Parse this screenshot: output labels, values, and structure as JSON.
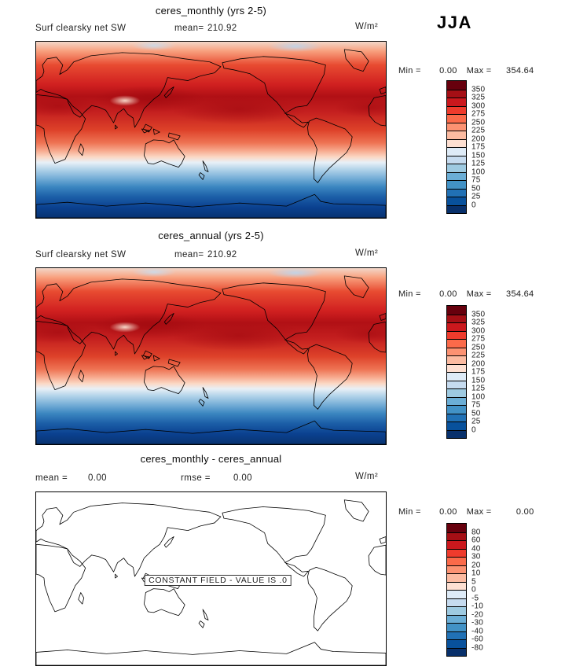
{
  "season_label": "JJA",
  "panels": [
    {
      "title": "ceres_monthly (yrs 2-5)",
      "var_label": "Surf clearsky net SW",
      "mean_label": "mean=",
      "mean_value": "210.92",
      "units": "W/m²",
      "min_label": "Min =",
      "min_value": "0.00",
      "max_label": "Max =",
      "max_value": "354.64",
      "colorbar": {
        "ticks": [
          "350",
          "325",
          "300",
          "275",
          "250",
          "225",
          "200",
          "175",
          "150",
          "125",
          "100",
          "75",
          "50",
          "25",
          "0"
        ],
        "colors": [
          "#67000d",
          "#a50f15",
          "#cb181d",
          "#ef3b2c",
          "#fb6a4a",
          "#fc9272",
          "#fcbba1",
          "#fee0d2",
          "#deebf7",
          "#c6dbef",
          "#9ecae1",
          "#6baed6",
          "#4292c6",
          "#2171b5",
          "#08519c",
          "#08306b"
        ]
      }
    },
    {
      "title": "ceres_annual (yrs 2-5)",
      "var_label": "Surf clearsky net SW",
      "mean_label": "mean=",
      "mean_value": "210.92",
      "units": "W/m²",
      "min_label": "Min =",
      "min_value": "0.00",
      "max_label": "Max =",
      "max_value": "354.64",
      "colorbar": {
        "ticks": [
          "350",
          "325",
          "300",
          "275",
          "250",
          "225",
          "200",
          "175",
          "150",
          "125",
          "100",
          "75",
          "50",
          "25",
          "0"
        ],
        "colors": [
          "#67000d",
          "#a50f15",
          "#cb181d",
          "#ef3b2c",
          "#fb6a4a",
          "#fc9272",
          "#fcbba1",
          "#fee0d2",
          "#deebf7",
          "#c6dbef",
          "#9ecae1",
          "#6baed6",
          "#4292c6",
          "#2171b5",
          "#08519c",
          "#08306b"
        ]
      }
    },
    {
      "title": "ceres_monthly - ceres_annual",
      "mean_label": "mean =",
      "mean_value": "0.00",
      "rmse_label": "rmse =",
      "rmse_value": "0.00",
      "units": "W/m²",
      "min_label": "Min =",
      "min_value": "0.00",
      "max_label": "Max =",
      "max_value": "0.00",
      "annotation": "CONSTANT FIELD - VALUE IS .0",
      "colorbar": {
        "ticks": [
          "80",
          "60",
          "40",
          "30",
          "20",
          "10",
          "5",
          "0",
          "-5",
          "-10",
          "-20",
          "-30",
          "-40",
          "-60",
          "-80"
        ],
        "colors": [
          "#67000d",
          "#a50f15",
          "#cb181d",
          "#ef3b2c",
          "#fb6a4a",
          "#fc9272",
          "#fcbba1",
          "#fee0d2",
          "#deebf7",
          "#c6dbef",
          "#9ecae1",
          "#6baed6",
          "#4292c6",
          "#2171b5",
          "#08519c",
          "#08306b"
        ]
      }
    }
  ],
  "chart_data": [
    {
      "type": "heatmap",
      "title": "ceres_monthly (yrs 2-5)",
      "variable": "Surf clearsky net SW",
      "season": "JJA",
      "units": "W/m²",
      "stats": {
        "mean": 210.92,
        "min": 0.0,
        "max": 354.64
      },
      "projection": "global equirectangular lat-lon map (0-360E, 90S-90N)",
      "contour_levels": [
        0,
        25,
        50,
        75,
        100,
        125,
        150,
        175,
        200,
        225,
        250,
        275,
        300,
        325,
        350
      ],
      "colormap": "blue-white-red diverging",
      "legend_position": "right vertical colorbar",
      "pattern": "high values 275-350 (dark red) across NH subtropics/mid-latitudes and tropics, decreasing southward through ~150 (white) near 30S to near 0 (dark blue) over the Southern Ocean and Antarctica"
    },
    {
      "type": "heatmap",
      "title": "ceres_annual (yrs 2-5)",
      "variable": "Surf clearsky net SW",
      "season": "JJA",
      "units": "W/m²",
      "stats": {
        "mean": 210.92,
        "min": 0.0,
        "max": 354.64
      },
      "projection": "global equirectangular lat-lon map (0-360E, 90S-90N)",
      "contour_levels": [
        0,
        25,
        50,
        75,
        100,
        125,
        150,
        175,
        200,
        225,
        250,
        275,
        300,
        325,
        350
      ],
      "colormap": "blue-white-red diverging",
      "legend_position": "right vertical colorbar",
      "pattern": "visually identical field to ceres_monthly panel"
    },
    {
      "type": "heatmap",
      "title": "ceres_monthly - ceres_annual",
      "season": "JJA",
      "units": "W/m²",
      "stats": {
        "mean": 0.0,
        "rmse": 0.0,
        "min": 0.0,
        "max": 0.0
      },
      "projection": "global equirectangular lat-lon map (0-360E, 90S-90N)",
      "contour_levels": [
        -80,
        -60,
        -40,
        -30,
        -20,
        -10,
        -5,
        0,
        5,
        10,
        20,
        30,
        40,
        60,
        80
      ],
      "colormap": "blue-white-red diverging",
      "legend_position": "right vertical colorbar",
      "annotation": "CONSTANT FIELD - VALUE IS .0",
      "pattern": "uniform zero difference field; map shown blank with coastlines only"
    }
  ]
}
